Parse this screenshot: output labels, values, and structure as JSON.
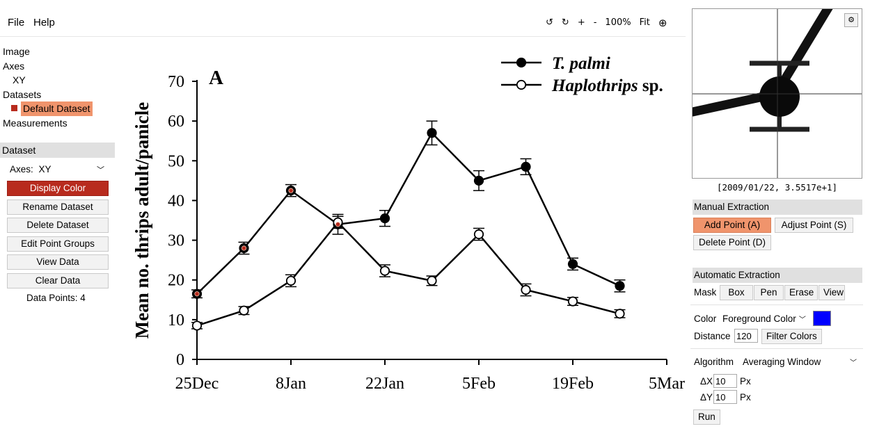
{
  "menu": {
    "file": "File",
    "help": "Help"
  },
  "zoom": {
    "rotate_ccw": "↺",
    "rotate_cw": "↻",
    "zoom_in": "+",
    "zoom_out": "-",
    "level": "100%",
    "fit": "Fit",
    "crosshair": "⊕"
  },
  "tree": {
    "image": "Image",
    "axes": "Axes",
    "axes_item": "XY",
    "datasets": "Datasets",
    "dataset_item": "Default Dataset",
    "measurements": "Measurements"
  },
  "dataset_panel": {
    "header": "Dataset",
    "axes_label": "Axes:",
    "axes_value": "XY",
    "display_color": "Display Color",
    "rename": "Rename Dataset",
    "delete": "Delete Dataset",
    "edit_groups": "Edit Point Groups",
    "view_data": "View Data",
    "clear_data": "Clear Data",
    "data_points": "Data Points: 4",
    "dataset_color": "#b82b1e"
  },
  "magnifier": {
    "coords": "[2009/01/22, 3.5517e+1]",
    "settings": "⚙"
  },
  "manual": {
    "header": "Manual Extraction",
    "add_point": "Add Point (A)",
    "adjust_point": "Adjust Point (S)",
    "delete_point": "Delete Point (D)"
  },
  "automatic": {
    "header": "Automatic Extraction",
    "mask_label": "Mask",
    "mask_buttons": [
      "Box",
      "Pen",
      "Erase",
      "View"
    ],
    "color_label": "Color",
    "color_mode": "Foreground Color",
    "color_swatch": "#0000ff",
    "distance_label": "Distance",
    "distance_value": "120",
    "filter_colors": "Filter Colors",
    "algorithm_label": "Algorithm",
    "algorithm_value": "Averaging Window",
    "dx_label": "ΔX",
    "dx_value": "10",
    "dx_unit": "Px",
    "dy_label": "ΔY",
    "dy_value": "10",
    "dy_unit": "Px",
    "run": "Run"
  },
  "chart_data": {
    "type": "line",
    "panel_label": "A",
    "ylabel": "Mean no. thrips adult/panicle",
    "xlabel": "",
    "ylim": [
      0,
      70
    ],
    "yticks": [
      0,
      10,
      20,
      30,
      40,
      50,
      60,
      70
    ],
    "xticks": [
      "25Dec",
      "8Jan",
      "22Jan",
      "5Feb",
      "19Feb",
      "5Mar"
    ],
    "xtick_days": [
      0,
      14,
      28,
      42,
      56,
      70
    ],
    "legend_position": "top-right",
    "series": [
      {
        "name": "T. palmi",
        "marker": "filled",
        "x_days": [
          0,
          7,
          14,
          21,
          28,
          35,
          42,
          49,
          56,
          63
        ],
        "values": [
          16.5,
          28,
          42.5,
          34,
          35.5,
          57,
          45,
          48.5,
          24,
          18.5
        ],
        "errors": [
          1,
          1.5,
          1.5,
          2.5,
          2,
          3,
          2.5,
          2,
          1.5,
          1.5
        ]
      },
      {
        "name": "Haplothrips sp.",
        "marker": "open",
        "x_days": [
          0,
          7,
          14,
          21,
          28,
          35,
          42,
          49,
          56,
          63
        ],
        "values": [
          8.5,
          12.3,
          19.8,
          34.5,
          22.3,
          19.8,
          31.5,
          17.5,
          14.6,
          11.5
        ],
        "errors": [
          0.8,
          1,
          1.5,
          1.5,
          1.5,
          1.2,
          1.5,
          1.5,
          1,
          1
        ]
      }
    ],
    "digitized_points_days": [
      0,
      7,
      14,
      21
    ],
    "digitized_points_values": [
      16.5,
      28,
      42.5,
      34
    ]
  }
}
